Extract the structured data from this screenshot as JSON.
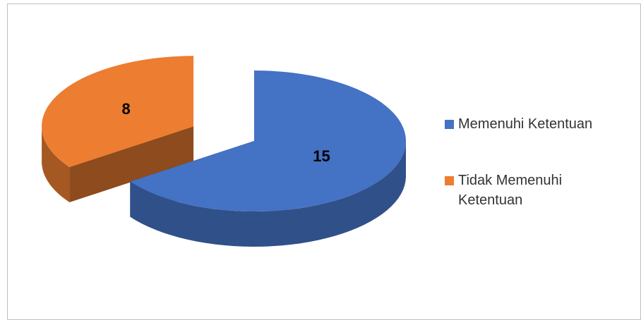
{
  "chart_data": {
    "type": "pie3d",
    "categories": [
      "Memenuhi Ketentuan",
      "Tidak Memenuhi Ketentuan"
    ],
    "values": [
      15,
      8
    ],
    "colors": [
      "#4472c4",
      "#ed7d31"
    ],
    "legend": "right"
  }
}
